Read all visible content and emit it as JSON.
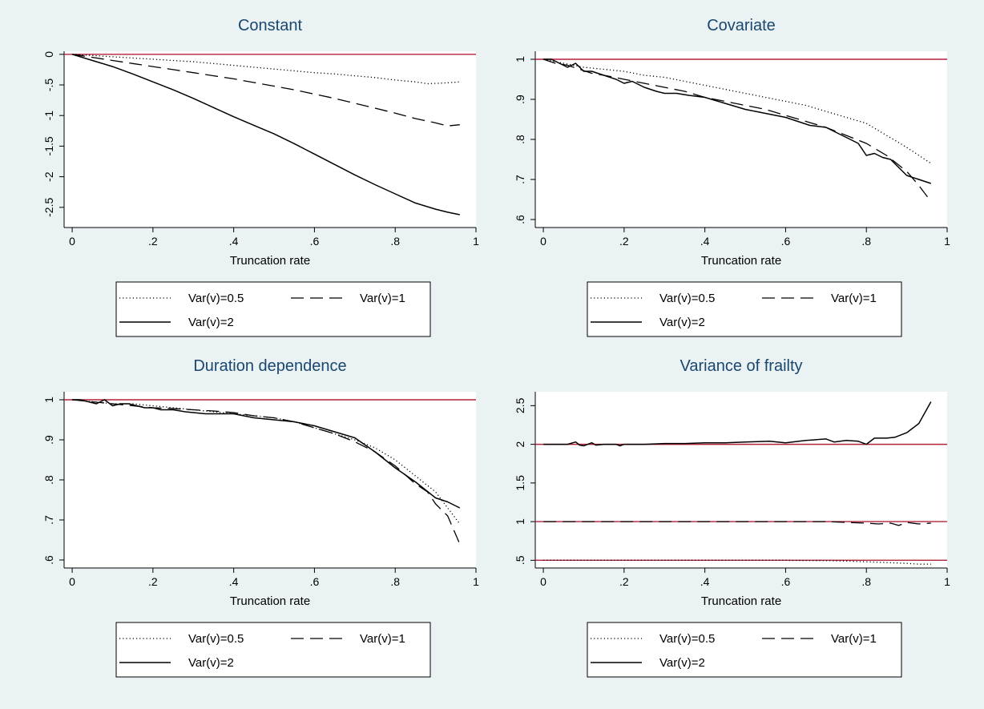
{
  "chart_data": [
    {
      "type": "line",
      "title": "Constant",
      "xlabel": "Truncation rate",
      "ylabel": "",
      "xlim": [
        -0.02,
        1.0
      ],
      "ylim": [
        -2.83,
        0.05
      ],
      "xticks": [
        0,
        0.2,
        0.4,
        0.6,
        0.8,
        1
      ],
      "xtick_labels": [
        "0",
        ".2",
        ".4",
        ".6",
        ".8",
        "1"
      ],
      "yticks": [
        0,
        -0.5,
        -1,
        -1.5,
        -2,
        -2.5
      ],
      "ytick_labels": [
        "0",
        "-.5",
        "-1",
        "-1.5",
        "-2",
        "-2.5"
      ],
      "reference_lines": [
        0
      ],
      "series": [
        {
          "name": "Var(v)=0.5",
          "style": "dotted",
          "x": [
            0,
            0.05,
            0.1,
            0.15,
            0.2,
            0.25,
            0.3,
            0.35,
            0.4,
            0.45,
            0.5,
            0.55,
            0.6,
            0.65,
            0.7,
            0.75,
            0.8,
            0.85,
            0.88,
            0.92,
            0.96
          ],
          "y": [
            0,
            -0.02,
            -0.04,
            -0.06,
            -0.08,
            -0.1,
            -0.12,
            -0.15,
            -0.18,
            -0.21,
            -0.24,
            -0.27,
            -0.3,
            -0.32,
            -0.35,
            -0.38,
            -0.42,
            -0.45,
            -0.48,
            -0.47,
            -0.45
          ]
        },
        {
          "name": "Var(v)=1",
          "style": "dashed",
          "x": [
            0,
            0.05,
            0.1,
            0.15,
            0.2,
            0.25,
            0.3,
            0.35,
            0.4,
            0.45,
            0.5,
            0.55,
            0.6,
            0.65,
            0.7,
            0.75,
            0.8,
            0.85,
            0.9,
            0.93,
            0.96
          ],
          "y": [
            0,
            -0.05,
            -0.1,
            -0.15,
            -0.2,
            -0.25,
            -0.3,
            -0.35,
            -0.4,
            -0.46,
            -0.52,
            -0.58,
            -0.65,
            -0.72,
            -0.8,
            -0.88,
            -0.96,
            -1.05,
            -1.12,
            -1.17,
            -1.15
          ]
        },
        {
          "name": "Var(v)=2",
          "style": "solid",
          "x": [
            0,
            0.05,
            0.1,
            0.15,
            0.2,
            0.25,
            0.3,
            0.35,
            0.4,
            0.45,
            0.5,
            0.55,
            0.6,
            0.65,
            0.7,
            0.75,
            0.8,
            0.85,
            0.9,
            0.93,
            0.96
          ],
          "y": [
            0,
            -0.1,
            -0.2,
            -0.32,
            -0.45,
            -0.58,
            -0.72,
            -0.87,
            -1.02,
            -1.16,
            -1.3,
            -1.46,
            -1.63,
            -1.8,
            -1.97,
            -2.13,
            -2.28,
            -2.43,
            -2.53,
            -2.58,
            -2.62
          ]
        }
      ],
      "legend": {
        "position": "below",
        "columns": 2
      }
    },
    {
      "type": "line",
      "title": "Covariate",
      "xlabel": "Truncation rate",
      "ylabel": "",
      "xlim": [
        -0.02,
        1.0
      ],
      "ylim": [
        0.58,
        1.02
      ],
      "xticks": [
        0,
        0.2,
        0.4,
        0.6,
        0.8,
        1
      ],
      "xtick_labels": [
        "0",
        ".2",
        ".4",
        ".6",
        ".8",
        "1"
      ],
      "yticks": [
        1,
        0.9,
        0.8,
        0.7,
        0.6
      ],
      "ytick_labels": [
        "1",
        ".9",
        ".8",
        ".7",
        ".6"
      ],
      "reference_lines": [
        1
      ],
      "series": [
        {
          "name": "Var(v)=0.5",
          "style": "dotted",
          "x": [
            0,
            0.05,
            0.1,
            0.15,
            0.2,
            0.25,
            0.3,
            0.35,
            0.4,
            0.45,
            0.5,
            0.55,
            0.6,
            0.65,
            0.7,
            0.75,
            0.8,
            0.85,
            0.9,
            0.93,
            0.96
          ],
          "y": [
            1.0,
            0.99,
            0.98,
            0.975,
            0.97,
            0.96,
            0.955,
            0.945,
            0.935,
            0.925,
            0.915,
            0.905,
            0.895,
            0.885,
            0.87,
            0.855,
            0.84,
            0.81,
            0.78,
            0.76,
            0.74
          ]
        },
        {
          "name": "Var(v)=1",
          "style": "dashed",
          "x": [
            0,
            0.03,
            0.06,
            0.09,
            0.12,
            0.15,
            0.2,
            0.25,
            0.3,
            0.35,
            0.4,
            0.45,
            0.5,
            0.55,
            0.6,
            0.65,
            0.7,
            0.75,
            0.8,
            0.85,
            0.9,
            0.93,
            0.96
          ],
          "y": [
            1.0,
            0.99,
            0.985,
            0.975,
            0.965,
            0.96,
            0.95,
            0.94,
            0.93,
            0.92,
            0.905,
            0.895,
            0.885,
            0.875,
            0.86,
            0.845,
            0.83,
            0.81,
            0.79,
            0.76,
            0.72,
            0.685,
            0.645
          ]
        },
        {
          "name": "Var(v)=2",
          "style": "solid",
          "x": [
            0,
            0.02,
            0.04,
            0.06,
            0.08,
            0.1,
            0.12,
            0.15,
            0.18,
            0.2,
            0.22,
            0.25,
            0.28,
            0.3,
            0.33,
            0.36,
            0.4,
            0.45,
            0.5,
            0.55,
            0.6,
            0.63,
            0.66,
            0.7,
            0.73,
            0.76,
            0.78,
            0.8,
            0.82,
            0.84,
            0.86,
            0.88,
            0.9,
            0.93,
            0.96
          ],
          "y": [
            1.0,
            1.0,
            0.99,
            0.98,
            0.99,
            0.97,
            0.97,
            0.96,
            0.95,
            0.94,
            0.945,
            0.93,
            0.92,
            0.915,
            0.915,
            0.91,
            0.905,
            0.89,
            0.875,
            0.865,
            0.855,
            0.845,
            0.835,
            0.83,
            0.815,
            0.8,
            0.79,
            0.76,
            0.765,
            0.755,
            0.75,
            0.73,
            0.71,
            0.7,
            0.69
          ]
        }
      ],
      "legend": {
        "position": "below",
        "columns": 2
      }
    },
    {
      "type": "line",
      "title": "Duration dependence",
      "xlabel": "Truncation rate",
      "ylabel": "",
      "xlim": [
        -0.02,
        1.0
      ],
      "ylim": [
        0.58,
        1.02
      ],
      "xticks": [
        0,
        0.2,
        0.4,
        0.6,
        0.8,
        1
      ],
      "xtick_labels": [
        "0",
        ".2",
        ".4",
        ".6",
        ".8",
        "1"
      ],
      "yticks": [
        1,
        0.9,
        0.8,
        0.7,
        0.6
      ],
      "ytick_labels": [
        "1",
        ".9",
        ".8",
        ".7",
        ".6"
      ],
      "reference_lines": [
        1
      ],
      "series": [
        {
          "name": "Var(v)=0.5",
          "style": "dotted",
          "x": [
            0,
            0.05,
            0.1,
            0.15,
            0.2,
            0.25,
            0.3,
            0.35,
            0.4,
            0.45,
            0.5,
            0.55,
            0.6,
            0.65,
            0.7,
            0.75,
            0.8,
            0.85,
            0.9,
            0.93,
            0.96
          ],
          "y": [
            1.0,
            0.995,
            0.99,
            0.99,
            0.985,
            0.98,
            0.975,
            0.97,
            0.965,
            0.96,
            0.955,
            0.945,
            0.93,
            0.915,
            0.9,
            0.88,
            0.85,
            0.81,
            0.77,
            0.73,
            0.69
          ]
        },
        {
          "name": "Var(v)=1",
          "style": "dashed",
          "x": [
            0,
            0.05,
            0.1,
            0.15,
            0.2,
            0.25,
            0.3,
            0.35,
            0.4,
            0.45,
            0.5,
            0.55,
            0.6,
            0.65,
            0.7,
            0.75,
            0.8,
            0.85,
            0.88,
            0.9,
            0.93,
            0.96
          ],
          "y": [
            1.0,
            0.995,
            0.99,
            0.985,
            0.98,
            0.978,
            0.975,
            0.972,
            0.968,
            0.96,
            0.955,
            0.945,
            0.93,
            0.915,
            0.895,
            0.87,
            0.835,
            0.79,
            0.77,
            0.74,
            0.71,
            0.64
          ]
        },
        {
          "name": "Var(v)=2",
          "style": "solid",
          "x": [
            0,
            0.02,
            0.04,
            0.06,
            0.08,
            0.1,
            0.12,
            0.14,
            0.16,
            0.18,
            0.2,
            0.22,
            0.25,
            0.28,
            0.3,
            0.33,
            0.36,
            0.4,
            0.45,
            0.5,
            0.55,
            0.6,
            0.65,
            0.7,
            0.75,
            0.8,
            0.85,
            0.9,
            0.93,
            0.96
          ],
          "y": [
            1.0,
            1.0,
            0.995,
            0.99,
            1.0,
            0.985,
            0.99,
            0.99,
            0.985,
            0.98,
            0.98,
            0.975,
            0.975,
            0.97,
            0.968,
            0.965,
            0.965,
            0.965,
            0.955,
            0.95,
            0.945,
            0.935,
            0.92,
            0.905,
            0.87,
            0.83,
            0.795,
            0.755,
            0.745,
            0.73
          ]
        }
      ],
      "legend": {
        "position": "below",
        "columns": 2
      }
    },
    {
      "type": "line",
      "title": "Variance of frailty",
      "xlabel": "Truncation rate",
      "ylabel": "",
      "xlim": [
        -0.02,
        1.0
      ],
      "ylim": [
        0.4,
        2.68
      ],
      "xticks": [
        0,
        0.2,
        0.4,
        0.6,
        0.8,
        1
      ],
      "xtick_labels": [
        "0",
        ".2",
        ".4",
        ".6",
        ".8",
        "1"
      ],
      "yticks": [
        2.5,
        2,
        1.5,
        1,
        0.5
      ],
      "ytick_labels": [
        "2.5",
        "2",
        "1.5",
        "1",
        ".5"
      ],
      "reference_lines": [
        2,
        1,
        0.5
      ],
      "series": [
        {
          "name": "Var(v)=0.5",
          "style": "dotted",
          "x": [
            0,
            0.1,
            0.2,
            0.3,
            0.4,
            0.5,
            0.6,
            0.7,
            0.75,
            0.8,
            0.85,
            0.9,
            0.93,
            0.96
          ],
          "y": [
            0.5,
            0.5,
            0.5,
            0.5,
            0.5,
            0.5,
            0.5,
            0.495,
            0.49,
            0.48,
            0.47,
            0.46,
            0.45,
            0.45
          ]
        },
        {
          "name": "Var(v)=1",
          "style": "dashed",
          "x": [
            0,
            0.05,
            0.1,
            0.15,
            0.2,
            0.25,
            0.3,
            0.35,
            0.4,
            0.45,
            0.5,
            0.55,
            0.6,
            0.65,
            0.7,
            0.75,
            0.8,
            0.83,
            0.86,
            0.88,
            0.9,
            0.93,
            0.96
          ],
          "y": [
            1.0,
            1.0,
            1.0,
            1.0,
            1.0,
            1.0,
            1.0,
            1.0,
            1.0,
            1.0,
            1.0,
            1.0,
            1.0,
            1.0,
            1.0,
            0.99,
            0.98,
            0.97,
            0.98,
            0.95,
            0.99,
            0.97,
            0.98
          ]
        },
        {
          "name": "Var(v)=2",
          "style": "solid",
          "x": [
            0,
            0.03,
            0.06,
            0.08,
            0.09,
            0.1,
            0.11,
            0.12,
            0.13,
            0.15,
            0.18,
            0.19,
            0.2,
            0.22,
            0.25,
            0.3,
            0.35,
            0.4,
            0.45,
            0.5,
            0.56,
            0.6,
            0.65,
            0.7,
            0.72,
            0.75,
            0.78,
            0.8,
            0.82,
            0.85,
            0.87,
            0.9,
            0.93,
            0.96
          ],
          "y": [
            2.0,
            2.0,
            2.0,
            2.03,
            1.99,
            1.98,
            2.0,
            2.02,
            1.99,
            2.0,
            2.0,
            1.98,
            2.0,
            2.0,
            2.0,
            2.01,
            2.01,
            2.02,
            2.02,
            2.03,
            2.04,
            2.02,
            2.05,
            2.07,
            2.03,
            2.05,
            2.04,
            2.0,
            2.08,
            2.08,
            2.09,
            2.15,
            2.27,
            2.55
          ]
        }
      ],
      "legend": {
        "position": "below",
        "columns": 2
      }
    }
  ],
  "colors": {
    "background": "#eaf2f3",
    "plot_region": "#ffffff",
    "reference_line": "#b2223a",
    "series_line": "#000000",
    "title": "#1a476f"
  }
}
